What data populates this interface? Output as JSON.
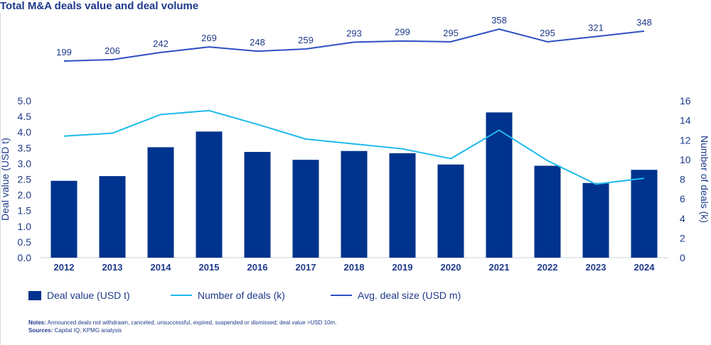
{
  "title": "Total M&A deals value and deal volume",
  "colors": {
    "bar": "#00338d",
    "deals_line": "#1ebaeb",
    "avg_line": "#2f4fc5",
    "text": "#1e3a8a",
    "axis": "#c9d1dc"
  },
  "legend": {
    "bar_label": "Deal value (USD t)",
    "deals_label": "Number of deals (k)",
    "avg_label": "Avg. deal size (USD m)"
  },
  "notes": {
    "notes_label": "Notes:",
    "notes_text": "Announced deals not withdrawn, canceled, unsuccessful, expired, suspended or dismissed; deal value >USD 10m.",
    "sources_label": "Sources:",
    "sources_text": "Capital IQ, KPMG analysis"
  },
  "chart_data": {
    "type": "bar",
    "title": "Total M&A deals value and deal volume",
    "categories": [
      "2012",
      "2013",
      "2014",
      "2015",
      "2016",
      "2017",
      "2018",
      "2019",
      "2020",
      "2021",
      "2022",
      "2023",
      "2024"
    ],
    "series": [
      {
        "name": "Deal value (USD t)",
        "type": "bar",
        "axis": "left",
        "values": [
          2.45,
          2.6,
          3.52,
          4.02,
          3.37,
          3.12,
          3.4,
          3.33,
          2.97,
          4.63,
          2.93,
          2.38,
          2.8
        ]
      },
      {
        "name": "Number of deals (k)",
        "type": "line",
        "axis": "right",
        "values": [
          12.4,
          12.7,
          14.6,
          15.0,
          13.6,
          12.1,
          11.6,
          11.1,
          10.1,
          13.0,
          9.9,
          7.5,
          8.1
        ]
      },
      {
        "name": "Avg. deal size (USD m)",
        "type": "line",
        "axis": "top",
        "values": [
          199,
          206,
          242,
          269,
          248,
          259,
          293,
          299,
          295,
          358,
          295,
          321,
          348
        ]
      }
    ],
    "ylabel": "Deal value (USD t)",
    "ylim": [
      0,
      5
    ],
    "yticks": [
      "0.0",
      "0.5",
      "1.0",
      "1.5",
      "2.0",
      "2.5",
      "3.0",
      "3.5",
      "4.0",
      "4.5",
      "5.0"
    ],
    "y2label": "Number of deals (k)",
    "y2lim": [
      0,
      16
    ],
    "y2ticks": [
      "0",
      "2",
      "4",
      "6",
      "8",
      "10",
      "12",
      "14",
      "16"
    ],
    "grid": false,
    "legend": "bottom"
  }
}
